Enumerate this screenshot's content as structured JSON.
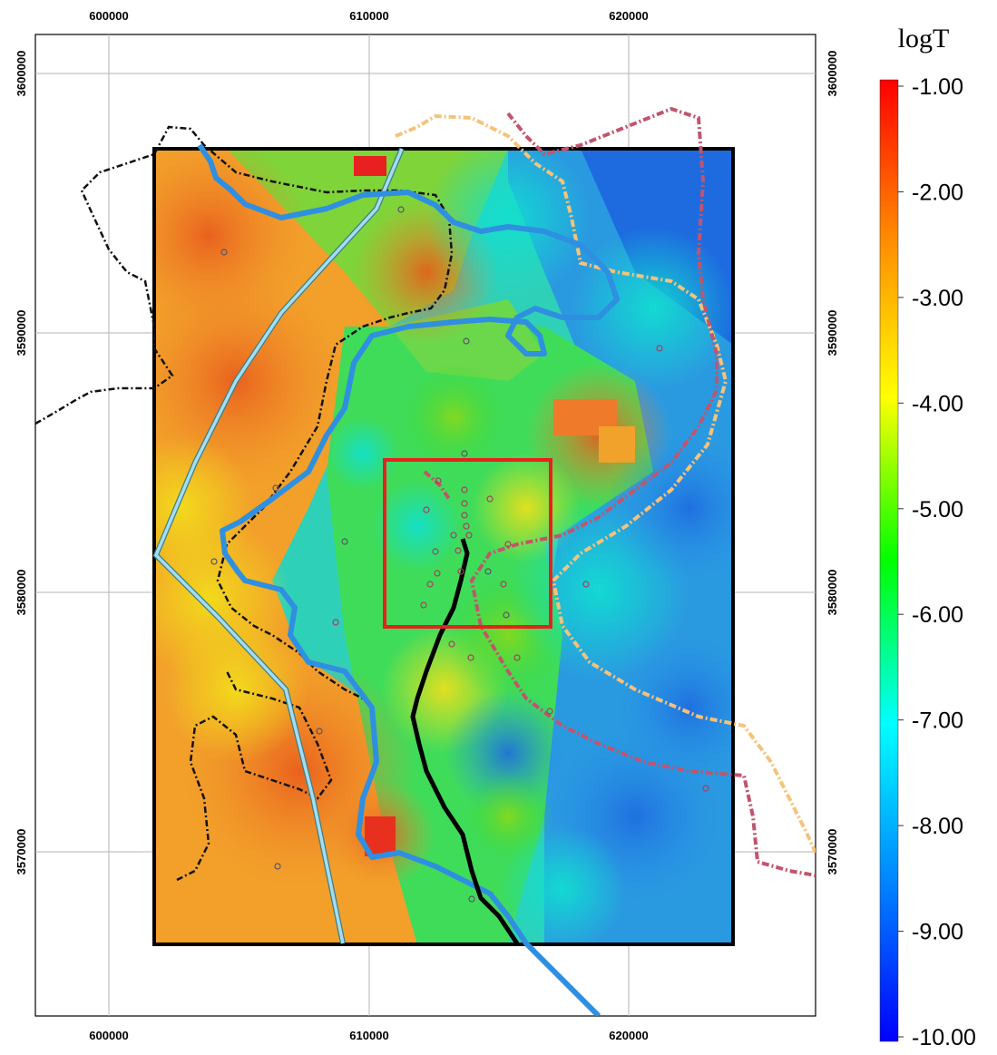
{
  "map": {
    "x_ticks": [
      "600000",
      "610000",
      "620000"
    ],
    "y_ticks": [
      "3600000",
      "3590000",
      "3580000",
      "3570000"
    ],
    "x_range": [
      597000,
      627000
    ],
    "y_range": [
      3563000,
      3602000
    ],
    "grid": true,
    "layers": {
      "raster": "logT surface (interpolated)",
      "study_area_boundary_color": "#000000",
      "inset_box_color": "#e8201f",
      "river_color": "#2f8fe0",
      "road_color": "#a6dcef",
      "dash_black": "#111111",
      "dash_orange": "#f6c27a",
      "dash_magenta": "#c2546c"
    }
  },
  "colorbar": {
    "title": "logT",
    "labels": [
      "-1.00",
      "-2.00",
      "-3.00",
      "-4.00",
      "-5.00",
      "-6.00",
      "-7.00",
      "-8.00",
      "-9.00",
      "-10.00"
    ],
    "colors": [
      "#ff0000",
      "#ff8800",
      "#ffff00",
      "#00ff00",
      "#00ffff",
      "#0080ff",
      "#0000ff"
    ]
  }
}
